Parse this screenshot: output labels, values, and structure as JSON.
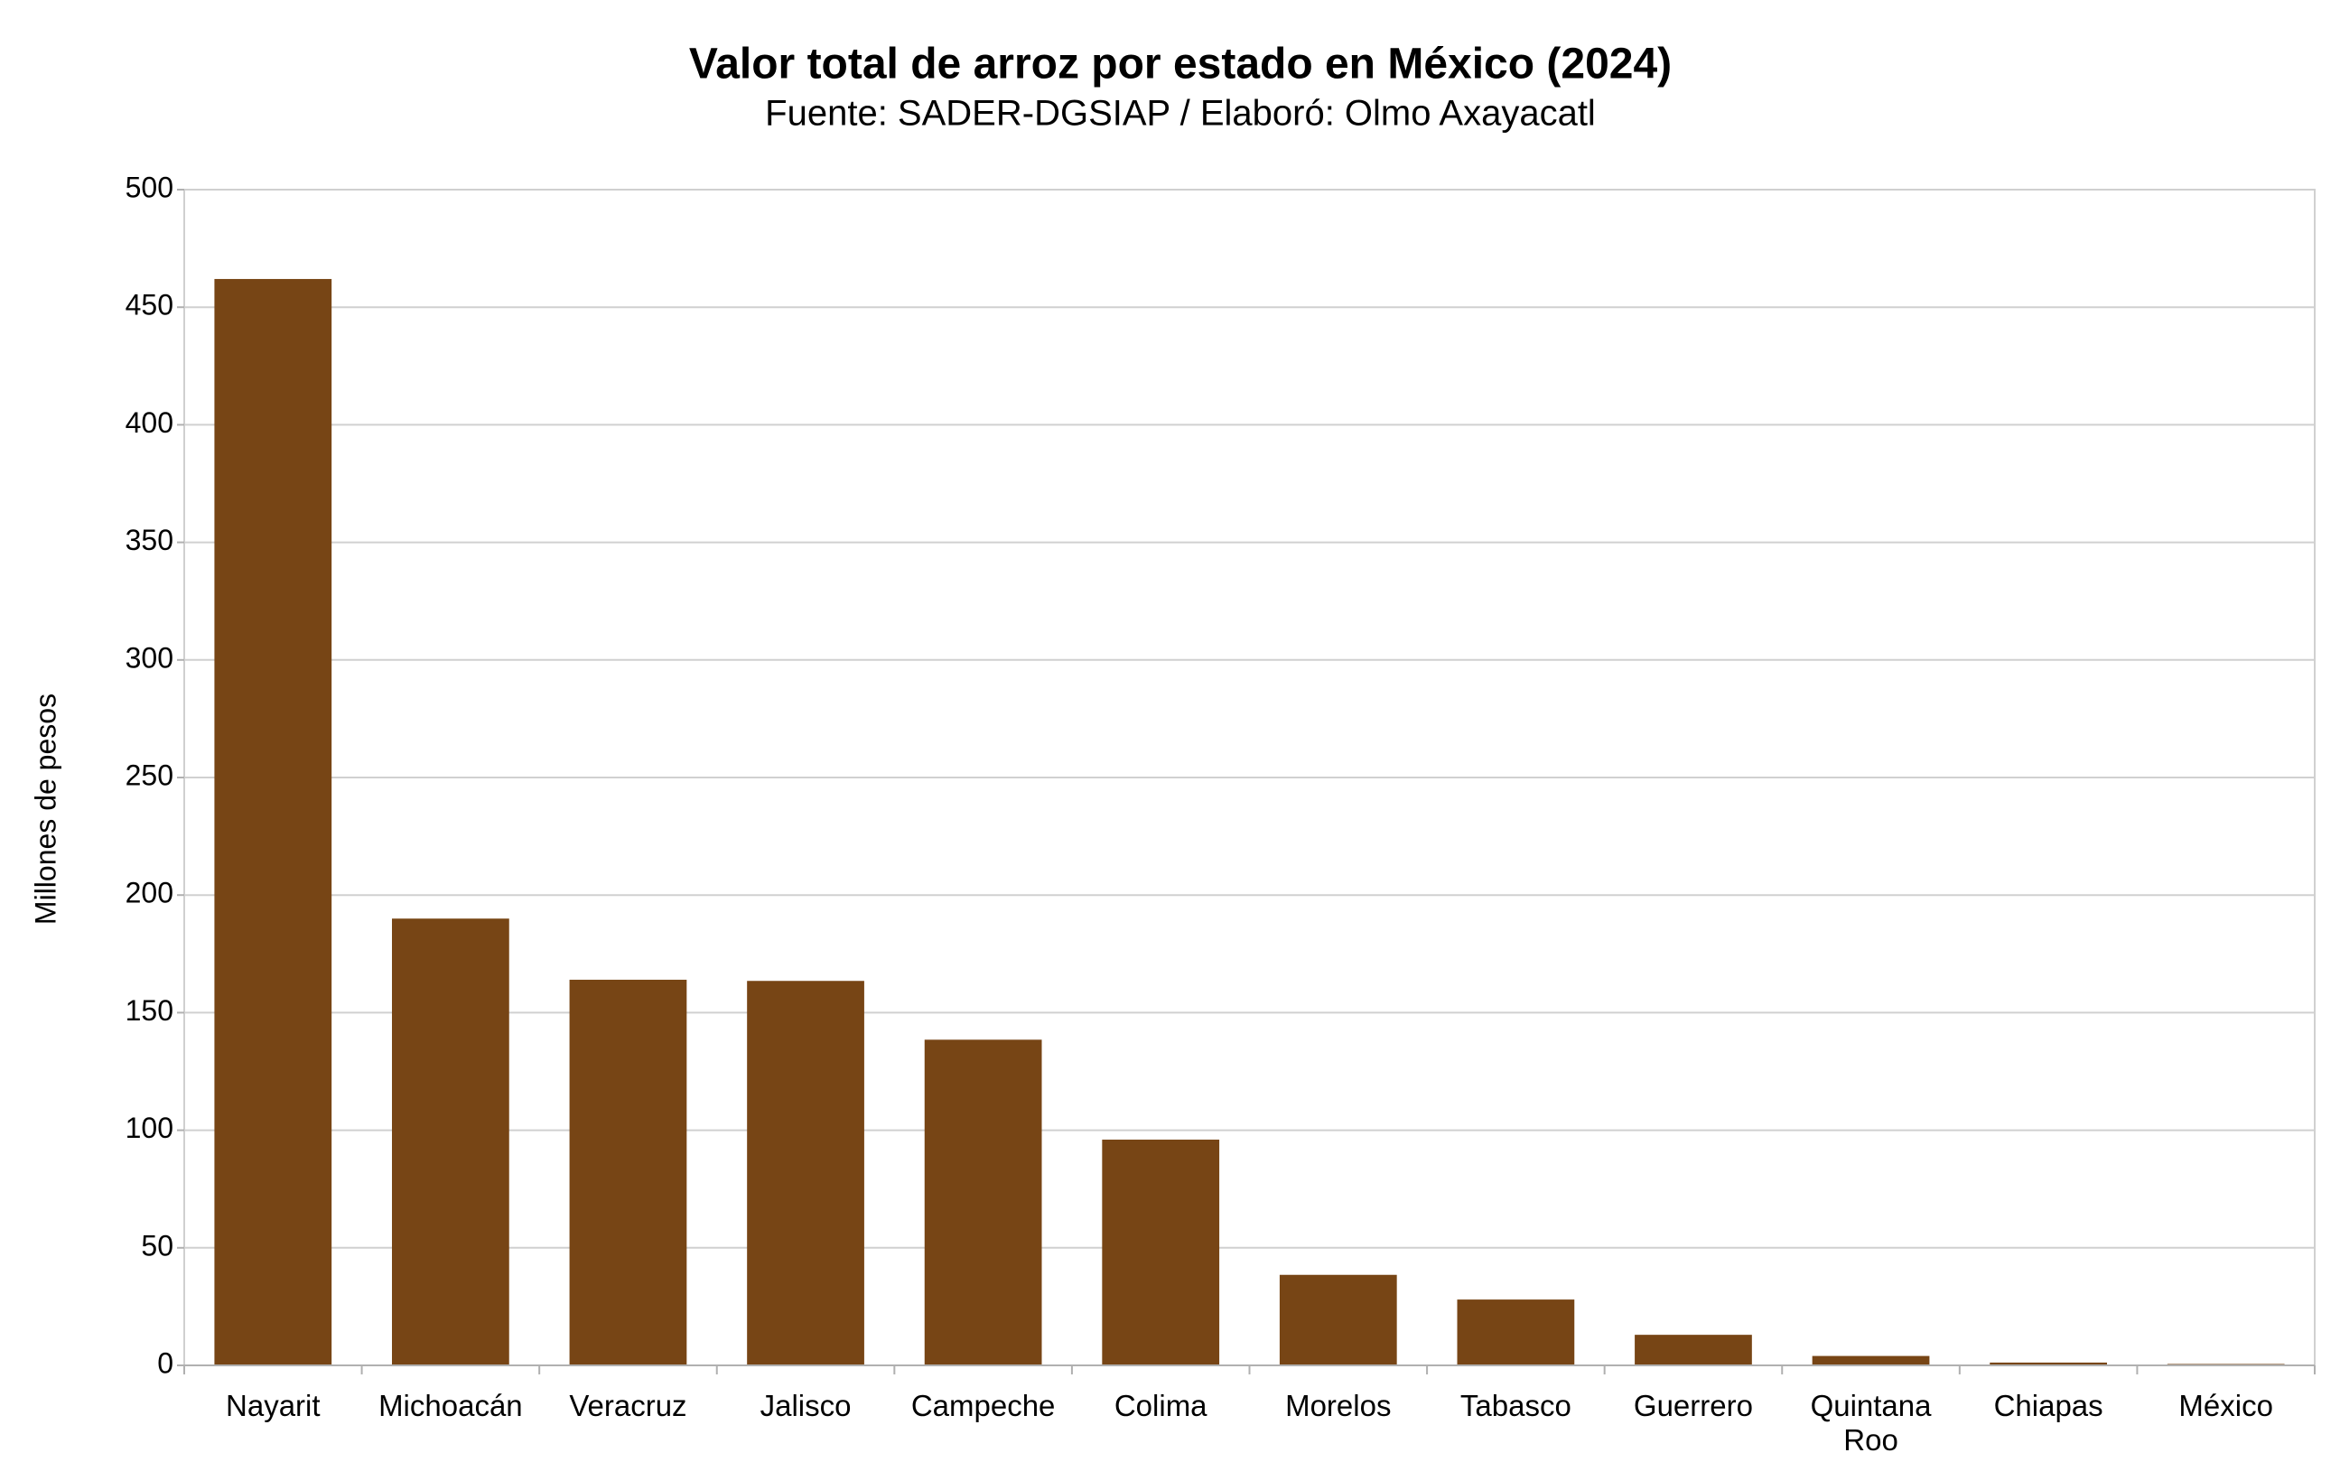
{
  "chart_data": {
    "type": "bar",
    "title": "Valor total de arroz por estado en México (2024)",
    "subtitle": "Fuente: SADER-DGSIAP / Elaboró: Olmo Axayacatl",
    "y_label": "Millones de pesos",
    "categories": [
      "Nayarit",
      "Michoacán",
      "Veracruz",
      "Jalisco",
      "Campeche",
      "Colima",
      "Morelos",
      "Tabasco",
      "Guerrero",
      "Quintana Roo",
      "Chiapas",
      "México"
    ],
    "values": [
      462,
      190,
      164,
      163.5,
      138.5,
      96,
      38.5,
      28,
      13,
      4,
      1.2,
      0.6
    ],
    "color": "#774515",
    "ylim": [
      0,
      500
    ],
    "yticks": [
      0,
      50,
      100,
      150,
      200,
      250,
      300,
      350,
      400,
      450,
      500
    ],
    "grid": true
  }
}
